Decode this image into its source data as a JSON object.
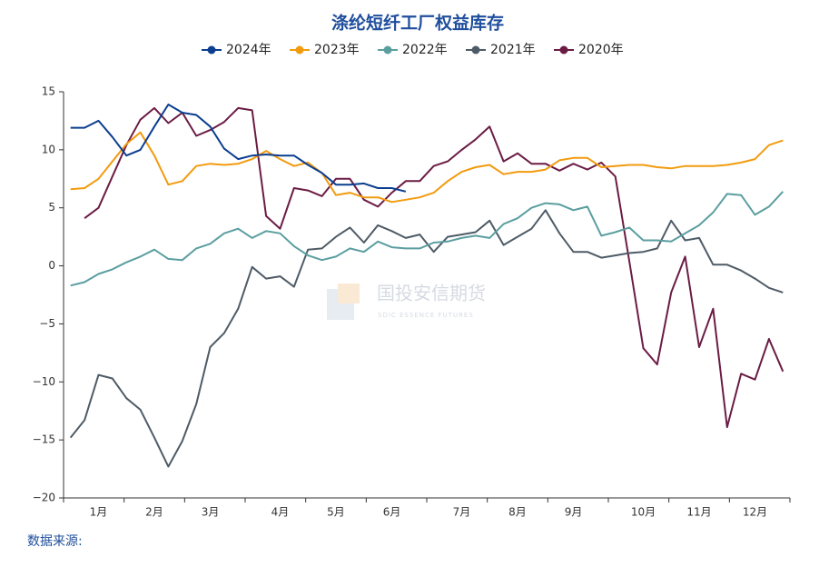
{
  "chart_data": {
    "type": "line",
    "title": "涤纶短纤工厂权益库存",
    "source": "数据来源:",
    "watermark": "国投安信期货",
    "watermark_sub": "SDIC ESSENCE FUTURES",
    "legend": "top",
    "categories": [
      null,
      null,
      "1月",
      null,
      null,
      null,
      "2月",
      null,
      null,
      null,
      "3月",
      null,
      null,
      null,
      null,
      "4月",
      null,
      null,
      null,
      "5月",
      null,
      null,
      null,
      "6月",
      null,
      null,
      null,
      null,
      "7月",
      null,
      null,
      null,
      "8月",
      null,
      null,
      null,
      "9月",
      null,
      null,
      null,
      null,
      "10月",
      null,
      null,
      null,
      "11月",
      null,
      null,
      null,
      "12月",
      null,
      null
    ],
    "ylim": [
      -20,
      15
    ],
    "yticks": [
      {
        "value": -20,
        "label": "−20"
      },
      {
        "value": -15,
        "label": "−15"
      },
      {
        "value": -10,
        "label": "−10"
      },
      {
        "value": -5,
        "label": "−5"
      },
      0,
      5,
      10,
      15
    ],
    "series": [
      {
        "name": "2024年",
        "color": "#0b3e8f",
        "values": [
          11.9,
          11.9,
          12.5,
          11.1,
          9.5,
          10,
          12,
          13.9,
          13.2,
          13.0,
          12,
          10.1,
          9.2,
          9.5,
          9.6,
          9.5,
          9.5,
          8.7,
          8,
          7.0,
          7.0,
          7.1,
          6.7,
          6.7,
          6.4,
          null,
          null,
          null,
          null,
          null,
          null,
          null,
          null,
          null,
          null,
          null,
          null,
          null,
          null,
          null,
          null,
          null,
          null,
          null,
          null,
          null,
          null,
          null,
          null,
          null,
          null,
          null
        ]
      },
      {
        "name": "2023年",
        "color": "#f29b0f",
        "values": [
          6.6,
          6.7,
          7.5,
          9,
          10.5,
          11.5,
          9.5,
          7.0,
          7.3,
          8.6,
          8.8,
          8.7,
          8.8,
          9.2,
          9.9,
          9.2,
          8.6,
          8.9,
          8.0,
          6.1,
          6.3,
          5.9,
          5.9,
          5.5,
          5.7,
          5.9,
          6.3,
          7.3,
          8.1,
          8.5,
          8.7,
          7.9,
          8.1,
          8.1,
          8.3,
          9.1,
          9.3,
          9.3,
          8.5,
          8.6,
          8.7,
          8.7,
          8.5,
          8.4,
          8.6,
          8.6,
          8.6,
          8.7,
          8.9,
          9.2,
          10.4,
          10.8
        ]
      },
      {
        "name": "2022年",
        "color": "#5b9ea0",
        "values": [
          -1.7,
          -1.4,
          -0.7,
          -0.3,
          0.3,
          0.8,
          1.4,
          0.6,
          0.5,
          1.5,
          1.9,
          2.8,
          3.2,
          2.4,
          3.0,
          2.8,
          1.7,
          0.9,
          0.5,
          0.8,
          1.5,
          1.2,
          2.1,
          1.6,
          1.5,
          1.5,
          2.0,
          2.1,
          2.4,
          2.6,
          2.4,
          3.6,
          4.1,
          5.0,
          5.4,
          5.3,
          4.8,
          5.1,
          2.6,
          2.9,
          3.3,
          2.2,
          2.2,
          2.1,
          2.8,
          3.5,
          4.6,
          6.2,
          6.1,
          4.4,
          5.1,
          6.4
        ]
      },
      {
        "name": "2021年",
        "color": "#4e5b66",
        "values": [
          -14.8,
          -13.3,
          -9.4,
          -9.7,
          -11.4,
          -12.4,
          -14.8,
          -17.3,
          -15.1,
          -11.9,
          -7.0,
          -5.8,
          -3.7,
          -0.1,
          -1.1,
          -0.9,
          -1.8,
          1.4,
          1.5,
          2.5,
          3.3,
          2.0,
          3.5,
          3.0,
          2.4,
          2.7,
          1.2,
          2.5,
          2.7,
          2.9,
          3.9,
          1.8,
          2.5,
          3.2,
          4.8,
          2.8,
          1.2,
          1.2,
          0.7,
          0.9,
          1.1,
          1.2,
          1.5,
          3.9,
          2.2,
          2.4,
          0.1,
          0.1,
          -0.4,
          -1.1,
          -1.9,
          -2.3
        ]
      },
      {
        "name": "2020年",
        "color": "#6b1c44",
        "values": [
          null,
          4.1,
          5.0,
          7.7,
          10.4,
          12.6,
          13.6,
          12.3,
          13.2,
          11.2,
          11.7,
          12.4,
          13.6,
          13.4,
          4.3,
          3.2,
          6.7,
          6.5,
          6.0,
          7.5,
          7.5,
          5.7,
          5.1,
          6.3,
          7.3,
          7.3,
          8.6,
          9.0,
          10.0,
          10.9,
          12.0,
          9.0,
          9.7,
          8.8,
          8.8,
          8.2,
          8.8,
          8.3,
          8.9,
          7.7,
          0.4,
          -7.1,
          -8.5,
          -2.3,
          0.8,
          -7.0,
          -3.7,
          -13.9,
          -9.3,
          -9.8,
          -6.3,
          -9.1
        ]
      }
    ]
  }
}
